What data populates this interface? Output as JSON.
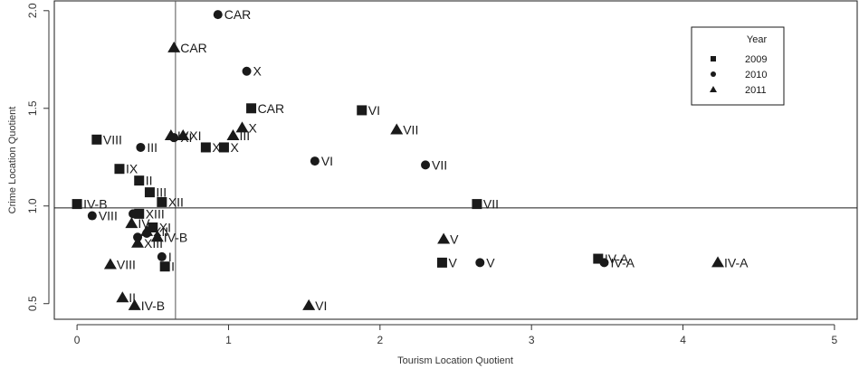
{
  "chart_data": {
    "type": "scatter",
    "title": "",
    "xlabel": "Tourism Location Quotient",
    "ylabel": "Crime Location Quotient",
    "xlim": [
      -0.15,
      5.15
    ],
    "ylim": [
      0.42,
      2.05
    ],
    "xticks": [
      0,
      1,
      2,
      3,
      4,
      5
    ],
    "yticks": [
      0.5,
      1.0,
      1.5,
      2.0
    ],
    "ytick_labels": [
      "0.5",
      "1.0",
      "1.5",
      "2.0"
    ],
    "reference_lines": {
      "x": 0.65,
      "y": 0.99
    },
    "grid": false,
    "legend": {
      "title": "Year",
      "placement": "top-right",
      "entries": [
        {
          "label": "2009",
          "marker": "square"
        },
        {
          "label": "2010",
          "marker": "circle"
        },
        {
          "label": "2011",
          "marker": "triangle"
        }
      ]
    },
    "series": [
      {
        "name": "2009",
        "marker": "square",
        "points": [
          {
            "x": 1.15,
            "y": 1.5,
            "label": "CAR"
          },
          {
            "x": 1.88,
            "y": 1.49,
            "label": "VI"
          },
          {
            "x": 0.13,
            "y": 1.34,
            "label": "VIII"
          },
          {
            "x": 0.85,
            "y": 1.3,
            "label": "X"
          },
          {
            "x": 0.97,
            "y": 1.3,
            "label": "X"
          },
          {
            "x": 0.28,
            "y": 1.19,
            "label": "IX"
          },
          {
            "x": 0.41,
            "y": 1.13,
            "label": "II"
          },
          {
            "x": 0.48,
            "y": 1.07,
            "label": "III"
          },
          {
            "x": 0.56,
            "y": 1.02,
            "label": "XII"
          },
          {
            "x": 0.0,
            "y": 1.01,
            "label": "IV-B"
          },
          {
            "x": 2.64,
            "y": 1.01,
            "label": "VII"
          },
          {
            "x": 0.41,
            "y": 0.96,
            "label": "XIII"
          },
          {
            "x": 0.5,
            "y": 0.89,
            "label": "XI"
          },
          {
            "x": 2.41,
            "y": 0.71,
            "label": "V"
          },
          {
            "x": 0.58,
            "y": 0.69,
            "label": "I"
          },
          {
            "x": 3.44,
            "y": 0.73,
            "label": "IV-A"
          }
        ]
      },
      {
        "name": "2010",
        "marker": "circle",
        "points": [
          {
            "x": 0.93,
            "y": 1.98,
            "label": "CAR"
          },
          {
            "x": 1.12,
            "y": 1.69,
            "label": "X"
          },
          {
            "x": 0.64,
            "y": 1.35,
            "label": "XI"
          },
          {
            "x": 0.42,
            "y": 1.3,
            "label": "III"
          },
          {
            "x": 1.57,
            "y": 1.23,
            "label": "VI"
          },
          {
            "x": 2.3,
            "y": 1.21,
            "label": "VII"
          },
          {
            "x": 0.1,
            "y": 0.95,
            "label": "VIII"
          },
          {
            "x": 0.37,
            "y": 0.96,
            "label": ""
          },
          {
            "x": 0.46,
            "y": 0.86,
            "label": ""
          },
          {
            "x": 0.4,
            "y": 0.84,
            "label": ""
          },
          {
            "x": 0.56,
            "y": 0.74,
            "label": "I"
          },
          {
            "x": 2.66,
            "y": 0.71,
            "label": "V"
          },
          {
            "x": 3.48,
            "y": 0.71,
            "label": "IV-A"
          }
        ]
      },
      {
        "name": "2011",
        "marker": "triangle",
        "points": [
          {
            "x": 0.64,
            "y": 1.81,
            "label": "CAR"
          },
          {
            "x": 1.09,
            "y": 1.4,
            "label": "X"
          },
          {
            "x": 2.11,
            "y": 1.39,
            "label": "VII"
          },
          {
            "x": 1.03,
            "y": 1.36,
            "label": "III"
          },
          {
            "x": 0.62,
            "y": 1.36,
            "label": "IX"
          },
          {
            "x": 0.7,
            "y": 1.36,
            "label": "XI"
          },
          {
            "x": 0.36,
            "y": 0.91,
            "label": "IV"
          },
          {
            "x": 0.46,
            "y": 0.87,
            "label": "XII"
          },
          {
            "x": 0.53,
            "y": 0.84,
            "label": "IV-B"
          },
          {
            "x": 0.4,
            "y": 0.81,
            "label": "XIII"
          },
          {
            "x": 2.42,
            "y": 0.83,
            "label": "V"
          },
          {
            "x": 0.22,
            "y": 0.7,
            "label": "VIII"
          },
          {
            "x": 4.23,
            "y": 0.71,
            "label": "IV-A"
          },
          {
            "x": 0.3,
            "y": 0.53,
            "label": "II"
          },
          {
            "x": 0.38,
            "y": 0.49,
            "label": "IV-B"
          },
          {
            "x": 1.53,
            "y": 0.49,
            "label": "VI"
          }
        ]
      }
    ]
  }
}
